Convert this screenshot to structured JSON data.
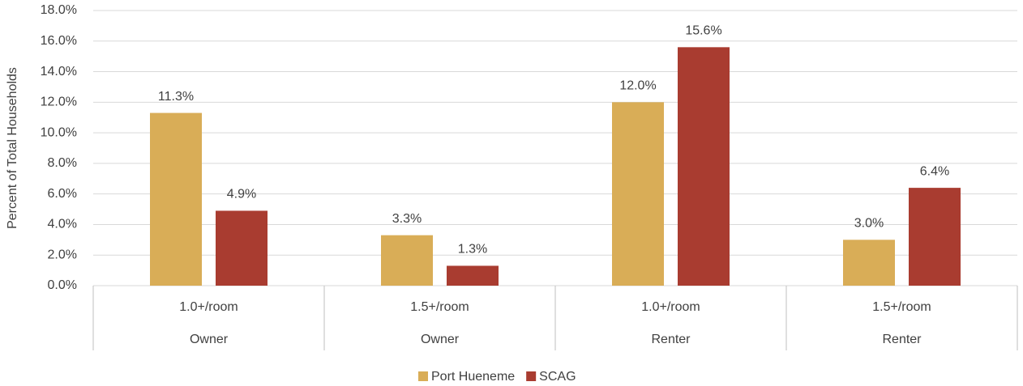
{
  "chart_data": {
    "type": "bar",
    "y_label": "Percent of Total Households",
    "categories": [
      "1.0+/room",
      "1.5+/room",
      "1.0+/room",
      "1.5+/room"
    ],
    "groups": [
      "Owner",
      "Owner",
      "Renter",
      "Renter"
    ],
    "series": [
      {
        "name": "Port Hueneme",
        "color": "#d9ad57",
        "values": [
          11.3,
          3.3,
          12.0,
          3.0
        ],
        "value_labels": [
          "11.3%",
          "3.3%",
          "12.0%",
          "3.0%"
        ]
      },
      {
        "name": "SCAG",
        "color": "#a93c30",
        "values": [
          4.9,
          1.3,
          15.6,
          6.4
        ],
        "value_labels": [
          "4.9%",
          "1.3%",
          "15.6%",
          "6.4%"
        ]
      }
    ],
    "ylim": [
      0,
      18
    ],
    "yticks": [
      {
        "value": 0,
        "label": "0.0%"
      },
      {
        "value": 2,
        "label": "2.0%"
      },
      {
        "value": 4,
        "label": "4.0%"
      },
      {
        "value": 6,
        "label": "6.0%"
      },
      {
        "value": 8,
        "label": "8.0%"
      },
      {
        "value": 10,
        "label": "10.0%"
      },
      {
        "value": 12,
        "label": "12.0%"
      },
      {
        "value": 14,
        "label": "14.0%"
      },
      {
        "value": 16,
        "label": "16.0%"
      },
      {
        "value": 18,
        "label": "18.0%"
      }
    ],
    "grid": true,
    "legend": "bottom"
  }
}
